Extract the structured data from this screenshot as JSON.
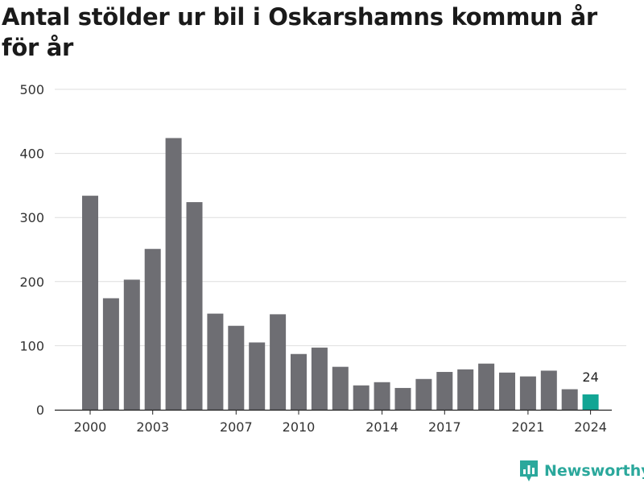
{
  "title": "Antal stölder ur bil i Oskarshamns kommun år för år",
  "brand": {
    "name": "Newsworthy",
    "icon": "newsworthy-logo-icon"
  },
  "colors": {
    "bar": "#6e6e73",
    "highlight": "#12a594",
    "grid": "#dddddd",
    "brand": "#2ba89c"
  },
  "chart_data": {
    "type": "bar",
    "title": "Antal stölder ur bil i Oskarshamns kommun år för år",
    "xlabel": "",
    "ylabel": "",
    "categories": [
      "2000",
      "2001",
      "2002",
      "2003",
      "2004",
      "2005",
      "2006",
      "2007",
      "2008",
      "2009",
      "2010",
      "2011",
      "2012",
      "2013",
      "2014",
      "2015",
      "2016",
      "2017",
      "2018",
      "2019",
      "2020",
      "2021",
      "2022",
      "2023",
      "2024"
    ],
    "x_tick_labels": [
      "2000",
      "2003",
      "2007",
      "2010",
      "2014",
      "2017",
      "2021",
      "2024"
    ],
    "values": [
      334,
      174,
      203,
      251,
      424,
      324,
      150,
      131,
      105,
      149,
      87,
      97,
      67,
      38,
      43,
      34,
      48,
      59,
      63,
      72,
      58,
      52,
      61,
      32,
      24
    ],
    "ylim": [
      0,
      500
    ],
    "y_ticks": [
      "0",
      "100",
      "200",
      "300",
      "400",
      "500"
    ],
    "grid": "horizontal",
    "highlight": {
      "category": "2024",
      "label": "24"
    }
  }
}
